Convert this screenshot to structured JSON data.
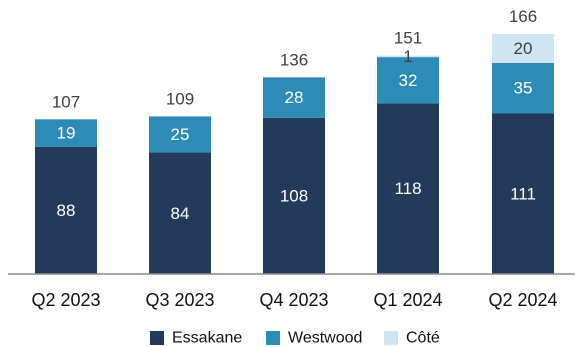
{
  "chart_data": {
    "type": "bar",
    "stacked": true,
    "categories": [
      "Q2 2023",
      "Q3 2023",
      "Q4 2023",
      "Q1 2024",
      "Q2 2024"
    ],
    "series": [
      {
        "name": "Essakane",
        "color": "#233a5a",
        "values": [
          88,
          84,
          108,
          118,
          111
        ]
      },
      {
        "name": "Westwood",
        "color": "#2e8ab6",
        "values": [
          19,
          25,
          28,
          32,
          35
        ]
      },
      {
        "name": "Côté",
        "color": "#cfe6f2",
        "values": [
          0,
          0,
          0,
          1,
          20
        ]
      }
    ],
    "totals": [
      107,
      109,
      136,
      151,
      166
    ],
    "ylim": [
      0,
      166
    ],
    "grid": false,
    "legend_position": "bottom"
  }
}
